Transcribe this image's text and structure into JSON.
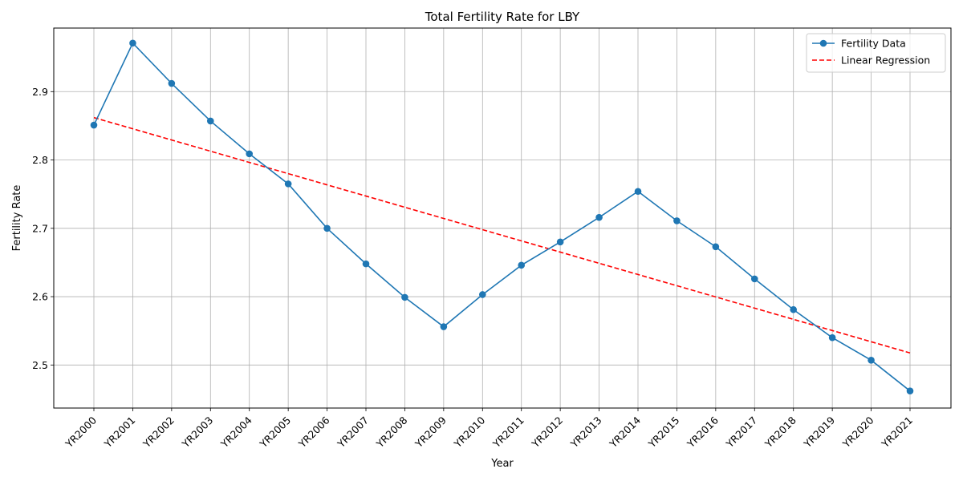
{
  "chart_data": {
    "type": "line",
    "title": "Total Fertility Rate for LBY",
    "xlabel": "Year",
    "ylabel": "Fertility Rate",
    "categories": [
      "YR2000",
      "YR2001",
      "YR2002",
      "YR2003",
      "YR2004",
      "YR2005",
      "YR2006",
      "YR2007",
      "YR2008",
      "YR2009",
      "YR2010",
      "YR2011",
      "YR2012",
      "YR2013",
      "YR2014",
      "YR2015",
      "YR2016",
      "YR2017",
      "YR2018",
      "YR2019",
      "YR2020",
      "YR2021"
    ],
    "yticks": [
      2.5,
      2.6,
      2.7,
      2.8,
      2.9
    ],
    "ylim": [
      2.437,
      2.993
    ],
    "grid": true,
    "legend_position": "top-right",
    "series": [
      {
        "name": "Fertility Data",
        "style": "solid-markers",
        "color": "#1f77b4",
        "values": [
          2.851,
          2.971,
          2.912,
          2.857,
          2.809,
          2.765,
          2.7,
          2.648,
          2.599,
          2.556,
          2.603,
          2.646,
          2.68,
          2.716,
          2.754,
          2.711,
          2.673,
          2.626,
          2.581,
          2.54,
          2.507,
          2.462
        ]
      },
      {
        "name": "Linear Regression",
        "style": "dashed",
        "color": "#ff0000",
        "values": [
          2.862,
          2.8456,
          2.8292,
          2.8128,
          2.7964,
          2.78,
          2.7636,
          2.7472,
          2.7308,
          2.7144,
          2.698,
          2.6816,
          2.6652,
          2.6488,
          2.6324,
          2.616,
          2.5996,
          2.5832,
          2.5668,
          2.5504,
          2.534,
          2.5176
        ]
      }
    ]
  }
}
